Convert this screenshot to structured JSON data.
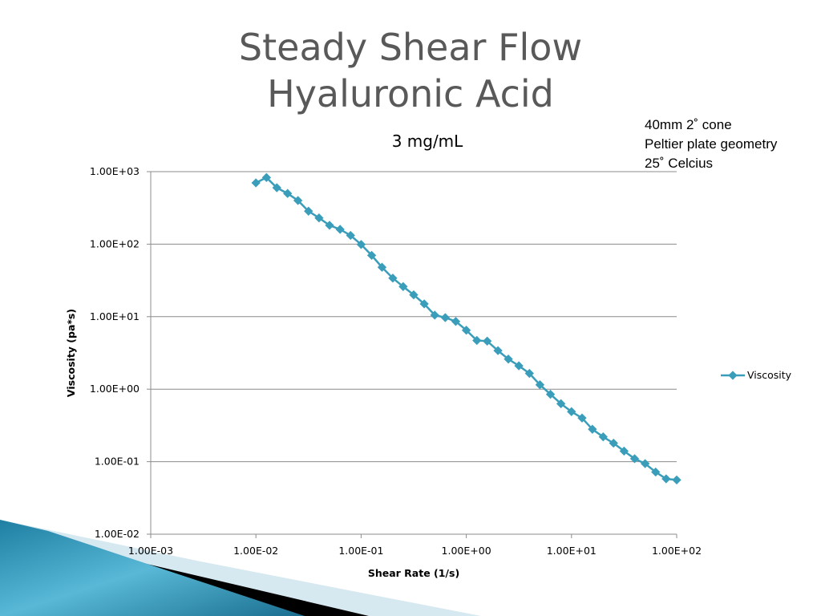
{
  "slide": {
    "title_line1": "Steady Shear Flow",
    "title_line2": "Hyaluronic Acid"
  },
  "notes": [
    "40mm 2˚  cone",
    "Peltier plate geometry",
    "25˚  Celcius"
  ],
  "chart_data": {
    "type": "line",
    "title": "3 mg/mL",
    "xlabel": "Shear Rate (1/s)",
    "ylabel": "Viscosity (pa*s)",
    "x_scale": "log",
    "y_scale": "log",
    "xlim": [
      0.001,
      100
    ],
    "ylim": [
      0.01,
      1000
    ],
    "x_ticks": [
      "1.00E-03",
      "1.00E-02",
      "1.00E-01",
      "1.00E+00",
      "1.00E+01",
      "1.00E+02"
    ],
    "y_ticks": [
      "1.00E-02",
      "1.00E-01",
      "1.00E+00",
      "1.00E+01",
      "1.00E+02",
      "1.00E+03"
    ],
    "grid": "horizontal",
    "legend_position": "right",
    "series_color": "#3A9EBB",
    "series": [
      {
        "name": "Viscosity",
        "x": [
          0.01,
          0.0126,
          0.0158,
          0.02,
          0.0251,
          0.0316,
          0.0398,
          0.0501,
          0.0631,
          0.0794,
          0.1,
          0.126,
          0.158,
          0.2,
          0.251,
          0.316,
          0.398,
          0.501,
          0.631,
          0.794,
          1.0,
          1.26,
          1.58,
          2.0,
          2.51,
          3.16,
          3.98,
          5.01,
          6.31,
          7.94,
          10.0,
          12.6,
          15.8,
          20.0,
          25.1,
          31.6,
          39.8,
          50.1,
          63.1,
          79.4,
          100
        ],
        "y": [
          700,
          830,
          600,
          500,
          400,
          285,
          230,
          182,
          160,
          132,
          99,
          70,
          48,
          34,
          26,
          20,
          15,
          10.5,
          9.7,
          8.6,
          6.5,
          4.7,
          4.6,
          3.4,
          2.6,
          2.1,
          1.65,
          1.15,
          0.85,
          0.63,
          0.49,
          0.4,
          0.28,
          0.22,
          0.18,
          0.14,
          0.11,
          0.094,
          0.072,
          0.058,
          0.056
        ]
      }
    ]
  }
}
